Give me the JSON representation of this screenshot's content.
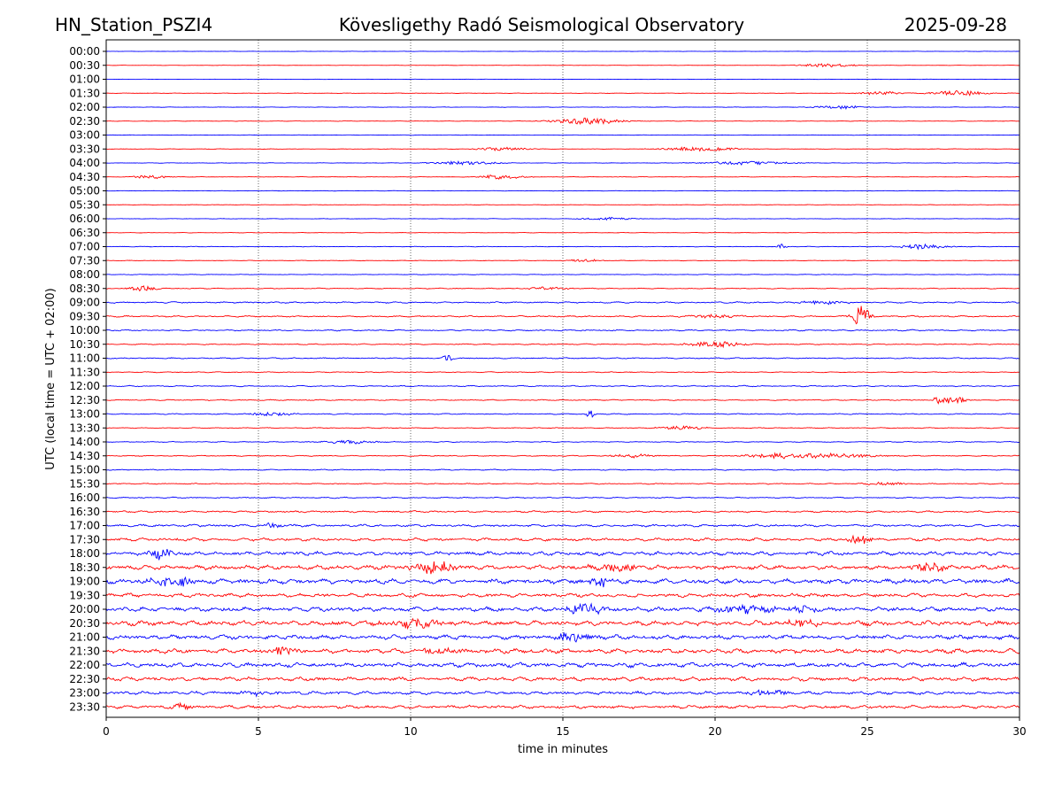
{
  "header": {
    "station": "HN_Station_PSZI4",
    "title": "Kövesligethy Radó Seismological Observatory",
    "date": "2025-09-28"
  },
  "chart_data": {
    "type": "line",
    "xlabel": "time in minutes",
    "ylabel": "UTC (local time = UTC + 02:00)",
    "xlim": [
      0,
      30
    ],
    "xticks": [
      0,
      5,
      10,
      15,
      20,
      25,
      30
    ],
    "vertical_gridlines": [
      5,
      10,
      15,
      20,
      25
    ],
    "row_labels": [
      "00:00",
      "00:30",
      "01:00",
      "01:30",
      "02:00",
      "02:30",
      "03:00",
      "03:30",
      "04:00",
      "04:30",
      "05:00",
      "05:30",
      "06:00",
      "06:30",
      "07:00",
      "07:30",
      "08:00",
      "08:30",
      "09:00",
      "09:30",
      "10:00",
      "10:30",
      "11:00",
      "11:30",
      "12:00",
      "12:30",
      "13:00",
      "13:30",
      "14:00",
      "14:30",
      "15:00",
      "15:30",
      "16:00",
      "16:30",
      "17:00",
      "17:30",
      "18:00",
      "18:30",
      "19:00",
      "19:30",
      "20:00",
      "20:30",
      "21:00",
      "21:30",
      "22:00",
      "22:30",
      "23:00",
      "23:30"
    ],
    "colors": [
      "#0000ff",
      "#ff0000"
    ],
    "noise_level": [
      0.2,
      0.2,
      0.2,
      0.3,
      0.3,
      0.3,
      0.3,
      0.3,
      0.3,
      0.3,
      0.3,
      0.3,
      0.3,
      0.3,
      0.4,
      0.4,
      0.4,
      0.6,
      1.0,
      1.0,
      0.9,
      0.7,
      0.8,
      0.6,
      0.8,
      0.7,
      0.7,
      0.6,
      0.6,
      0.7,
      0.7,
      0.7,
      0.8,
      1.2,
      1.6,
      2.0,
      2.6,
      3.0,
      3.2,
      2.6,
      3.0,
      3.2,
      3.0,
      3.0,
      3.0,
      2.6,
      2.2,
      2.2
    ],
    "events": [
      {
        "row": 1,
        "t": 23.7,
        "amp": 2.0,
        "dur": 0.6
      },
      {
        "row": 3,
        "t": 25.5,
        "amp": 2.0,
        "dur": 0.5
      },
      {
        "row": 3,
        "t": 28.0,
        "amp": 3.0,
        "dur": 0.6
      },
      {
        "row": 4,
        "t": 24.0,
        "amp": 2.0,
        "dur": 0.6
      },
      {
        "row": 5,
        "t": 15.8,
        "amp": 3.5,
        "dur": 0.8
      },
      {
        "row": 7,
        "t": 13.0,
        "amp": 2.0,
        "dur": 0.6
      },
      {
        "row": 7,
        "t": 19.5,
        "amp": 2.5,
        "dur": 0.8
      },
      {
        "row": 8,
        "t": 11.8,
        "amp": 2.0,
        "dur": 0.8
      },
      {
        "row": 8,
        "t": 21.0,
        "amp": 2.0,
        "dur": 1.0
      },
      {
        "row": 9,
        "t": 1.5,
        "amp": 2.0,
        "dur": 0.4
      },
      {
        "row": 9,
        "t": 13.0,
        "amp": 2.5,
        "dur": 0.5
      },
      {
        "row": 12,
        "t": 16.5,
        "amp": 1.5,
        "dur": 0.6
      },
      {
        "row": 14,
        "t": 22.2,
        "amp": 3.5,
        "dur": 0.1
      },
      {
        "row": 14,
        "t": 26.8,
        "amp": 2.5,
        "dur": 0.6
      },
      {
        "row": 15,
        "t": 15.7,
        "amp": 1.5,
        "dur": 0.4
      },
      {
        "row": 17,
        "t": 1.2,
        "amp": 3.0,
        "dur": 0.3
      },
      {
        "row": 17,
        "t": 14.5,
        "amp": 1.5,
        "dur": 0.6
      },
      {
        "row": 18,
        "t": 23.5,
        "amp": 2.0,
        "dur": 0.5
      },
      {
        "row": 19,
        "t": 24.8,
        "amp": 12.0,
        "dur": 0.2
      },
      {
        "row": 19,
        "t": 20.0,
        "amp": 2.0,
        "dur": 0.6
      },
      {
        "row": 21,
        "t": 20.0,
        "amp": 3.5,
        "dur": 0.6
      },
      {
        "row": 22,
        "t": 11.2,
        "amp": 5.0,
        "dur": 0.1
      },
      {
        "row": 25,
        "t": 27.3,
        "amp": 5.0,
        "dur": 0.1
      },
      {
        "row": 25,
        "t": 27.8,
        "amp": 4.0,
        "dur": 0.3
      },
      {
        "row": 26,
        "t": 5.5,
        "amp": 2.0,
        "dur": 0.5
      },
      {
        "row": 26,
        "t": 15.9,
        "amp": 5.0,
        "dur": 0.1
      },
      {
        "row": 27,
        "t": 18.9,
        "amp": 2.0,
        "dur": 0.5
      },
      {
        "row": 28,
        "t": 8.0,
        "amp": 2.0,
        "dur": 0.6
      },
      {
        "row": 29,
        "t": 17.3,
        "amp": 2.0,
        "dur": 0.5
      },
      {
        "row": 29,
        "t": 22.5,
        "amp": 3.0,
        "dur": 1.0
      },
      {
        "row": 29,
        "t": 24.0,
        "amp": 2.0,
        "dur": 1.0
      },
      {
        "row": 31,
        "t": 25.6,
        "amp": 1.5,
        "dur": 0.5
      },
      {
        "row": 34,
        "t": 5.5,
        "amp": 4.0,
        "dur": 0.2
      },
      {
        "row": 35,
        "t": 24.7,
        "amp": 5.0,
        "dur": 0.3
      },
      {
        "row": 36,
        "t": 1.8,
        "amp": 6.0,
        "dur": 0.3
      },
      {
        "row": 37,
        "t": 10.9,
        "amp": 7.0,
        "dur": 0.5
      },
      {
        "row": 37,
        "t": 16.6,
        "amp": 5.0,
        "dur": 0.5
      },
      {
        "row": 37,
        "t": 27.0,
        "amp": 5.0,
        "dur": 0.4
      },
      {
        "row": 38,
        "t": 2.2,
        "amp": 6.0,
        "dur": 0.5
      },
      {
        "row": 38,
        "t": 16.2,
        "amp": 7.0,
        "dur": 0.2
      },
      {
        "row": 40,
        "t": 15.7,
        "amp": 7.0,
        "dur": 0.4
      },
      {
        "row": 40,
        "t": 21.0,
        "amp": 5.0,
        "dur": 0.6
      },
      {
        "row": 40,
        "t": 22.9,
        "amp": 5.0,
        "dur": 0.3
      },
      {
        "row": 41,
        "t": 10.0,
        "amp": 5.0,
        "dur": 0.6
      },
      {
        "row": 41,
        "t": 22.8,
        "amp": 5.0,
        "dur": 0.3
      },
      {
        "row": 42,
        "t": 15.3,
        "amp": 5.0,
        "dur": 0.4
      },
      {
        "row": 43,
        "t": 5.8,
        "amp": 5.0,
        "dur": 0.3
      },
      {
        "row": 43,
        "t": 11.0,
        "amp": 3.0,
        "dur": 0.5
      },
      {
        "row": 46,
        "t": 5.0,
        "amp": 2.0,
        "dur": 0.5
      },
      {
        "row": 46,
        "t": 21.8,
        "amp": 3.0,
        "dur": 0.5
      },
      {
        "row": 47,
        "t": 2.6,
        "amp": 3.0,
        "dur": 0.3
      }
    ]
  }
}
